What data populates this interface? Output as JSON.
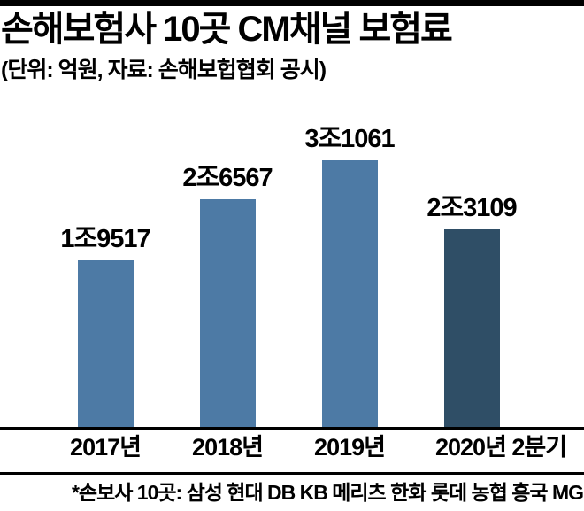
{
  "header": {
    "title": "손해보험사 10곳 CM채널 보험료",
    "subtitle": "(단위: 억원, 자료: 손해보헙협회 공시)"
  },
  "chart_data": {
    "type": "bar",
    "title": "손해보험사 10곳 CM채널 보험료",
    "unit": "억원",
    "categories": [
      "2017년",
      "2018년",
      "2019년",
      "2020년 2분기"
    ],
    "values": [
      19517,
      26567,
      31061,
      23109
    ],
    "value_labels": [
      "1조9517",
      "2조6567",
      "3조1061",
      "2조3109"
    ],
    "bar_colors": [
      "#4d7aa5",
      "#4d7aa5",
      "#4d7aa5",
      "#2f4e66"
    ],
    "ylim": [
      0,
      31061
    ],
    "grid": false,
    "legend": false,
    "xlabel": "",
    "ylabel": ""
  },
  "footnote": "*손보사 10곳: 삼성 현대 DB KB 메리츠 한화 롯데 농협 흥국 MG",
  "colors": {
    "bar_primary": "#4d7aa5",
    "bar_highlight": "#2f4e66",
    "line": "#000000",
    "background": "#ffffff",
    "text": "#000000"
  }
}
